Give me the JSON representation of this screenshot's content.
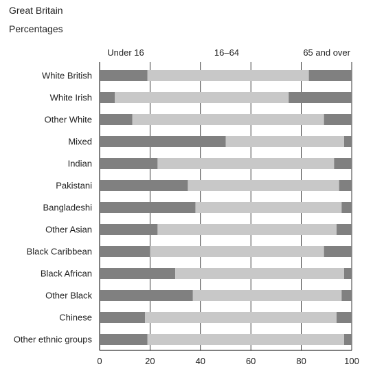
{
  "header": {
    "title": "Great Britain",
    "subtitle": "Percentages"
  },
  "colors": {
    "dark": "#808080",
    "light": "#c8c8c8",
    "grid": "#000000"
  },
  "chart_data": {
    "type": "bar",
    "stacked": true,
    "orientation": "horizontal",
    "title": "Great Britain",
    "subtitle": "Percentages",
    "legend_labels": [
      "Under 16",
      "16–64",
      "65 and over"
    ],
    "legend_placement": "top",
    "categories": [
      "White British",
      "White Irish",
      "Other White",
      "Mixed",
      "Indian",
      "Pakistani",
      "Bangladeshi",
      "Other Asian",
      "Black Caribbean",
      "Black African",
      "Other Black",
      "Chinese",
      "Other ethnic groups"
    ],
    "series": [
      {
        "name": "Under 16",
        "values": [
          19,
          6,
          13,
          50,
          23,
          35,
          38,
          23,
          20,
          30,
          37,
          18,
          19
        ]
      },
      {
        "name": "16–64",
        "values": [
          64,
          69,
          76,
          47,
          70,
          60,
          58,
          71,
          69,
          67,
          59,
          76,
          78
        ]
      },
      {
        "name": "65 and over",
        "values": [
          17,
          25,
          11,
          3,
          7,
          5,
          4,
          6,
          11,
          3,
          4,
          6,
          3
        ]
      }
    ],
    "xlim": [
      0,
      100
    ],
    "x_ticks": [
      0,
      20,
      40,
      60,
      80,
      100
    ],
    "grid": true
  }
}
